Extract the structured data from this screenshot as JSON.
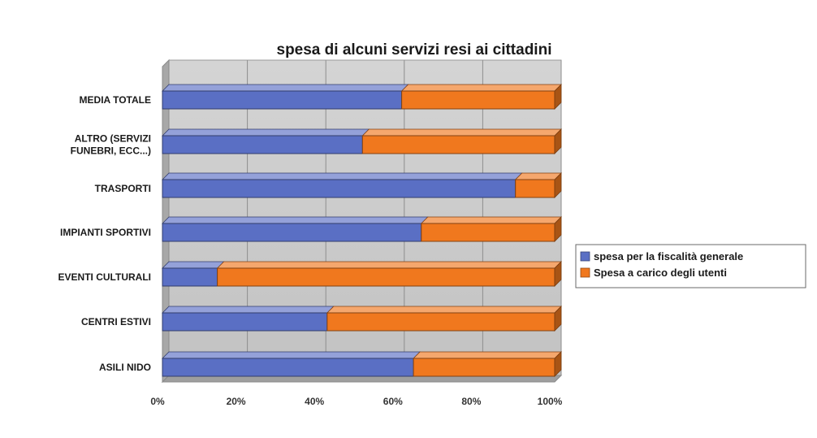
{
  "chart_data": {
    "type": "bar",
    "orientation": "horizontal",
    "stacked": true,
    "percent": true,
    "title": "spesa di alcuni servizi resi ai cittadini",
    "categories": [
      "MEDIA TOTALE",
      "ALTRO (SERVIZI FUNEBRI, ECC...)",
      "TRASPORTI",
      "IMPIANTI SPORTIVI",
      "EVENTI CULTURALI",
      "CENTRI ESTIVI",
      "ASILI NIDO"
    ],
    "category_lines": [
      [
        "MEDIA TOTALE"
      ],
      [
        "ALTRO (SERVIZI",
        "FUNEBRI, ECC...)"
      ],
      [
        "TRASPORTI"
      ],
      [
        "IMPIANTI SPORTIVI"
      ],
      [
        "EVENTI CULTURALI"
      ],
      [
        "CENTRI ESTIVI"
      ],
      [
        "ASILI NIDO"
      ]
    ],
    "series": [
      {
        "name": "spesa per la fiscalità generale",
        "color": "#5a6fc4",
        "values": [
          61,
          51,
          90,
          66,
          14,
          42,
          64
        ]
      },
      {
        "name": "Spesa a carico degli utenti",
        "color": "#f0781e",
        "values": [
          39,
          49,
          10,
          34,
          86,
          58,
          36
        ]
      }
    ],
    "xlim": [
      0,
      100
    ],
    "xticks": [
      "0%",
      "20%",
      "40%",
      "60%",
      "80%",
      "100%"
    ],
    "grid": true,
    "legend_position": "right"
  }
}
